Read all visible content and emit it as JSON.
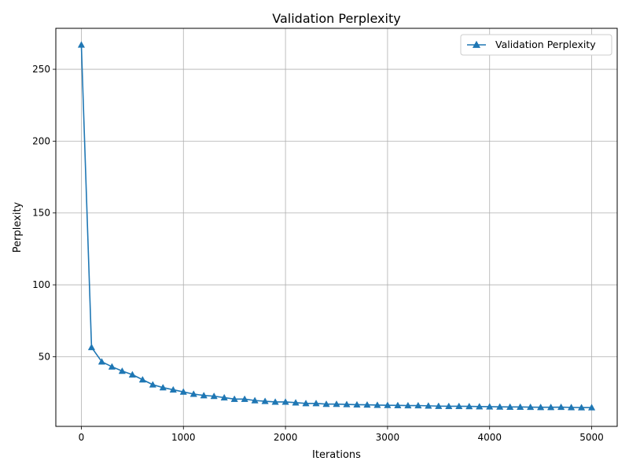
{
  "chart_data": {
    "type": "line",
    "title": "Validation Perplexity",
    "xlabel": "Iterations",
    "ylabel": "Perplexity",
    "xlim": [
      -250,
      5250
    ],
    "ylim": [
      1.5,
      278.5
    ],
    "x_ticks": [
      0,
      1000,
      2000,
      3000,
      4000,
      5000
    ],
    "y_ticks": [
      50,
      100,
      150,
      200,
      250
    ],
    "grid": true,
    "legend_position": "top-right",
    "series": [
      {
        "name": "Validation Perplexity",
        "color": "#1f77b4",
        "marker": "triangle-up",
        "x": [
          0,
          100,
          200,
          300,
          400,
          500,
          600,
          700,
          800,
          900,
          1000,
          1100,
          1200,
          1300,
          1400,
          1500,
          1600,
          1700,
          1800,
          1900,
          2000,
          2100,
          2200,
          2300,
          2400,
          2500,
          2600,
          2700,
          2800,
          2900,
          3000,
          3100,
          3200,
          3300,
          3400,
          3500,
          3600,
          3700,
          3800,
          3900,
          4000,
          4100,
          4200,
          4300,
          4400,
          4500,
          4600,
          4700,
          4800,
          4900,
          5000
        ],
        "y": [
          267,
          56.5,
          46.5,
          43,
          40,
          37.5,
          34,
          30.5,
          28.5,
          27,
          25.5,
          24,
          23,
          22.5,
          21.5,
          20.5,
          20.5,
          19.5,
          19,
          18.5,
          18.5,
          18,
          17.5,
          17.5,
          17,
          17,
          16.8,
          16.6,
          16.5,
          16.3,
          16.2,
          16.1,
          16,
          16,
          15.8,
          15.6,
          15.5,
          15.5,
          15.4,
          15.3,
          15.2,
          15.1,
          15,
          15,
          14.9,
          14.8,
          14.8,
          14.9,
          14.7,
          14.6,
          14.6
        ]
      }
    ]
  }
}
